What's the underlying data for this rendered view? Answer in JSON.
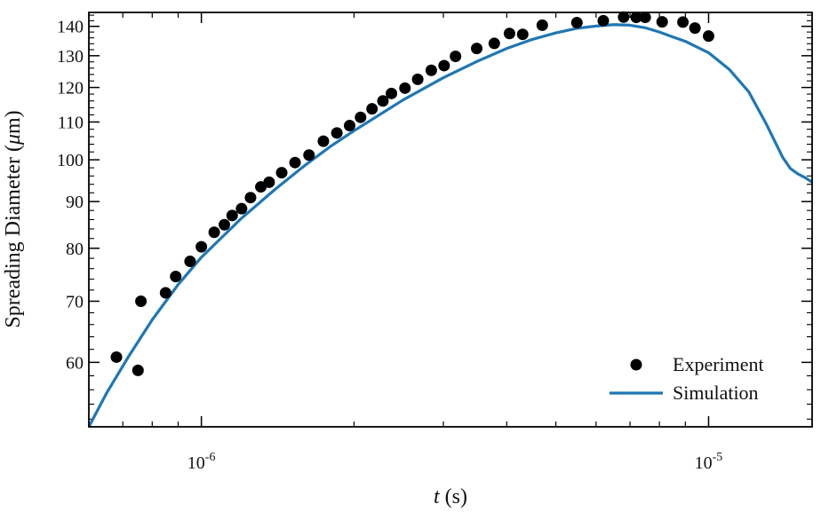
{
  "chart_data": {
    "type": "scatter",
    "xlabel_var": "t",
    "xlabel_unit": "(s)",
    "ylabel_main": "Spreading Diameter (",
    "ylabel_mu": "μ",
    "ylabel_unit": "m)",
    "x_scale": "log",
    "y_scale": "log",
    "xlim": [
      6e-07,
      1.6e-05
    ],
    "ylim": [
      51,
      145
    ],
    "x_ticks": [
      {
        "value": 1e-06,
        "base": "10",
        "exp": "-6"
      },
      {
        "value": 1e-05,
        "base": "10",
        "exp": "-5"
      }
    ],
    "y_ticks": [
      60,
      70,
      80,
      90,
      100,
      110,
      120,
      130,
      140
    ],
    "y_tick_labels": [
      "60",
      "70",
      "80",
      "90",
      "100",
      "110",
      "120",
      "130",
      "140"
    ],
    "legend_position": "bottom-right",
    "legend": {
      "experiment": "Experiment",
      "simulation": "Simulation"
    },
    "colors": {
      "experiment": "#000000",
      "simulation": "#1f77b4",
      "axes": "#000000"
    },
    "series": [
      {
        "name": "Experiment",
        "kind": "markers",
        "points": [
          [
            6.8e-07,
            60.8
          ],
          [
            7.5e-07,
            58.8
          ],
          [
            7.6e-07,
            70.0
          ],
          [
            8.5e-07,
            71.5
          ],
          [
            8.9e-07,
            74.5
          ],
          [
            9.5e-07,
            77.4
          ],
          [
            1e-06,
            80.3
          ],
          [
            1.06e-06,
            83.3
          ],
          [
            1.11e-06,
            84.9
          ],
          [
            1.15e-06,
            86.9
          ],
          [
            1.2e-06,
            88.4
          ],
          [
            1.25e-06,
            90.9
          ],
          [
            1.31e-06,
            93.4
          ],
          [
            1.36e-06,
            94.5
          ],
          [
            1.44e-06,
            96.8
          ],
          [
            1.53e-06,
            99.3
          ],
          [
            1.63e-06,
            101.2
          ],
          [
            1.74e-06,
            104.8
          ],
          [
            1.85e-06,
            107.0
          ],
          [
            1.96e-06,
            109.0
          ],
          [
            2.06e-06,
            111.3
          ],
          [
            2.17e-06,
            113.7
          ],
          [
            2.28e-06,
            116.0
          ],
          [
            2.37e-06,
            118.2
          ],
          [
            2.52e-06,
            119.8
          ],
          [
            2.67e-06,
            122.5
          ],
          [
            2.84e-06,
            125.3
          ],
          [
            3.01e-06,
            126.8
          ],
          [
            3.17e-06,
            129.8
          ],
          [
            3.49e-06,
            132.4
          ],
          [
            3.78e-06,
            134.1
          ],
          [
            4.05e-06,
            137.5
          ],
          [
            4.3e-06,
            137.2
          ],
          [
            4.7e-06,
            140.4
          ],
          [
            5.5e-06,
            141.3
          ],
          [
            6.2e-06,
            142.0
          ],
          [
            6.8e-06,
            143.3
          ],
          [
            7.2e-06,
            143.2
          ],
          [
            7.5e-06,
            143.2
          ],
          [
            8.1e-06,
            141.6
          ],
          [
            8.9e-06,
            141.5
          ],
          [
            9.4e-06,
            139.4
          ],
          [
            1e-05,
            136.6
          ]
        ]
      },
      {
        "name": "Simulation",
        "kind": "line",
        "points": [
          [
            6e-07,
            51.0
          ],
          [
            6.5e-07,
            55.5
          ],
          [
            7.2e-07,
            61.0
          ],
          [
            8e-07,
            66.8
          ],
          [
            9e-07,
            73.0
          ],
          [
            1e-06,
            78.2
          ],
          [
            1.2e-06,
            86.3
          ],
          [
            1.4e-06,
            92.9
          ],
          [
            1.6e-06,
            98.6
          ],
          [
            1.8e-06,
            103.5
          ],
          [
            2e-06,
            107.6
          ],
          [
            2.5e-06,
            116.3
          ],
          [
            3e-06,
            123.0
          ],
          [
            3.5e-06,
            128.2
          ],
          [
            4e-06,
            132.4
          ],
          [
            4.5e-06,
            135.5
          ],
          [
            5e-06,
            137.7
          ],
          [
            5.5e-06,
            139.3
          ],
          [
            6e-06,
            140.1
          ],
          [
            6.5e-06,
            140.6
          ],
          [
            7e-06,
            140.4
          ],
          [
            7.5e-06,
            139.5
          ],
          [
            8e-06,
            138.0
          ],
          [
            8.5e-06,
            136.3
          ],
          [
            9e-06,
            134.8
          ],
          [
            1e-05,
            131.0
          ],
          [
            1.1e-05,
            125.5
          ],
          [
            1.2e-05,
            118.7
          ],
          [
            1.3e-05,
            109.4
          ],
          [
            1.4e-05,
            100.6
          ],
          [
            1.45e-05,
            97.8
          ],
          [
            1.5e-05,
            96.5
          ],
          [
            1.55e-05,
            95.6
          ],
          [
            1.6e-05,
            94.5
          ]
        ]
      }
    ]
  }
}
